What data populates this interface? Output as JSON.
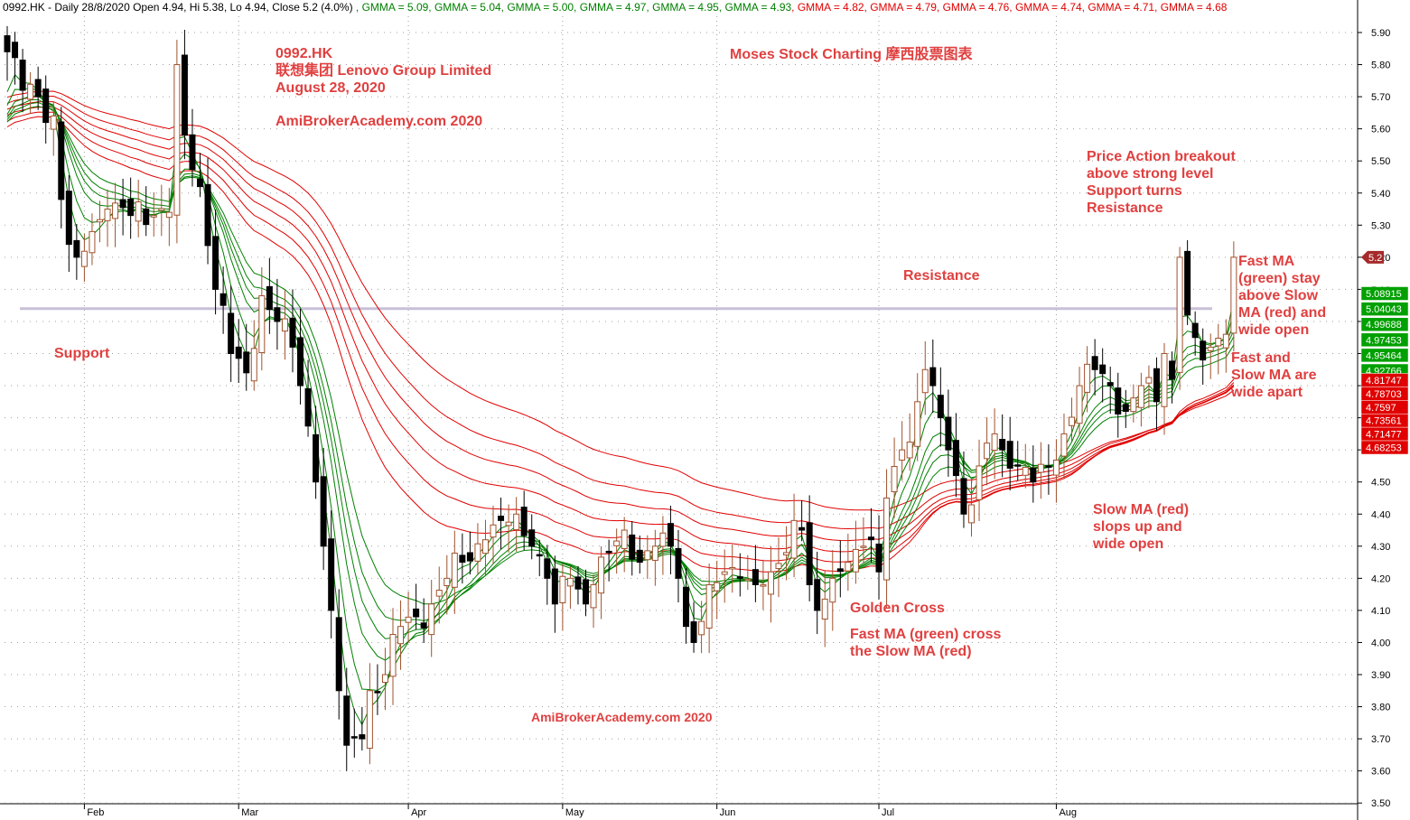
{
  "header": {
    "ticker_info": "0992.HK - Daily 28/8/2020 Open 4.94, Hi 5.38, Lo 4.94, Close 5.2 (4.0%)",
    "gmma": [
      {
        "text": "GMMA = 5.09",
        "color": "#008000"
      },
      {
        "text": "GMMA = 5.04",
        "color": "#008000"
      },
      {
        "text": "GMMA = 5.00",
        "color": "#008000"
      },
      {
        "text": "GMMA = 4.97",
        "color": "#008000"
      },
      {
        "text": "GMMA = 4.95",
        "color": "#008000"
      },
      {
        "text": "GMMA = 4.93",
        "color": "#008000"
      },
      {
        "text": "GMMA = 4.82",
        "color": "#e00000"
      },
      {
        "text": "GMMA = 4.79",
        "color": "#e00000"
      },
      {
        "text": "GMMA = 4.76",
        "color": "#e00000"
      },
      {
        "text": "GMMA = 4.74",
        "color": "#e00000"
      },
      {
        "text": "GMMA = 4.71",
        "color": "#e00000"
      },
      {
        "text": "GMMA = 4.68",
        "color": "#e00000"
      }
    ]
  },
  "annotations": {
    "ticker": "0992.HK",
    "company": "联想集团 Lenovo Group Limited",
    "date": "August 28, 2020",
    "site": "AmiBrokerAcademy.com  2020",
    "brand": "Moses Stock Charting 摩西股票图表",
    "support": "Support",
    "resistance": "Resistance",
    "breakout": [
      "Price Action breakout",
      "above strong level",
      "Support turns",
      "Resistance"
    ],
    "fast_ma": [
      "Fast MA",
      "(green) stay",
      "above Slow",
      "MA (red) and",
      "wide open"
    ],
    "apart": [
      "Fast and",
      "Slow MA are",
      "wide apart"
    ],
    "slow_ma": [
      "Slow MA (red)",
      "slops up and",
      "wide open"
    ],
    "golden_cross": "Golden Cross",
    "cross_desc": [
      "Fast MA (green) cross",
      "the Slow MA (red)"
    ],
    "watermark": "AmiBrokerAcademy.com  2020"
  },
  "colors": {
    "annotation": "#e04040",
    "up_candle": "#a0522d",
    "down_candle": "#000000",
    "fast_ma": "#008000",
    "slow_ma": "#e00000",
    "support_line": "#c8c0d8",
    "grid": "#a0a0a0",
    "price_tag": "#a52a2a"
  },
  "chart_data": {
    "type": "candlestick",
    "ylim": [
      3.5,
      5.95
    ],
    "y_ticks": [
      5.9,
      5.8,
      5.7,
      5.6,
      5.5,
      5.4,
      5.3,
      5.2,
      5.1,
      5.0,
      4.9,
      4.8,
      4.7,
      4.6,
      4.5,
      4.4,
      4.3,
      4.2,
      4.1,
      4.0,
      3.9,
      3.8,
      3.7,
      3.6,
      3.5
    ],
    "y_tick_labels": [
      "5.90",
      "5.80",
      "5.70",
      "5.60",
      "5.50",
      "5.40",
      "5.30",
      "5.20",
      "5.10",
      "5.00",
      "4.90",
      "4.80",
      "4.70",
      "4.60",
      "4.50",
      "4.40",
      "4.30",
      "4.20",
      "4.10",
      "4.00",
      "3.90",
      "3.80",
      "3.70",
      "3.60",
      "3.50"
    ],
    "x_months": [
      {
        "label": "Feb",
        "bar": 10
      },
      {
        "label": "Mar",
        "bar": 30
      },
      {
        "label": "Apr",
        "bar": 52
      },
      {
        "label": "May",
        "bar": 72
      },
      {
        "label": "Jun",
        "bar": 92
      },
      {
        "label": "Jul",
        "bar": 113
      },
      {
        "label": "Aug",
        "bar": 136
      }
    ],
    "support_level": 5.04,
    "last_close": {
      "label": "5.2",
      "value": 5.2
    },
    "ma_tags": {
      "fast": [
        {
          "label": "5.08915",
          "value": 5.089
        },
        {
          "label": "5.04043",
          "value": 5.04
        },
        {
          "label": "4.99688",
          "value": 4.997
        },
        {
          "label": "4.97453",
          "value": 4.975
        },
        {
          "label": "4.95464",
          "value": 4.955
        },
        {
          "label": "4.92766",
          "value": 4.928
        }
      ],
      "slow": [
        {
          "label": "4.81747",
          "value": 4.817
        },
        {
          "label": "4.78703",
          "value": 4.787
        },
        {
          "label": "4.7597",
          "value": 4.76
        },
        {
          "label": "4.73561",
          "value": 4.736
        },
        {
          "label": "4.71477",
          "value": 4.715
        },
        {
          "label": "4.68253",
          "value": 4.683
        }
      ]
    },
    "close_anchors": [
      [
        0,
        5.84
      ],
      [
        2,
        5.72
      ],
      [
        4,
        5.7
      ],
      [
        6,
        5.64
      ],
      [
        7,
        5.38
      ],
      [
        8,
        5.24
      ],
      [
        9,
        5.2
      ],
      [
        11,
        5.28
      ],
      [
        13,
        5.35
      ],
      [
        16,
        5.33
      ],
      [
        19,
        5.33
      ],
      [
        21,
        5.34
      ],
      [
        22,
        5.8
      ],
      [
        23,
        5.58
      ],
      [
        25,
        5.42
      ],
      [
        27,
        5.1
      ],
      [
        28,
        5.05
      ],
      [
        29,
        4.9
      ],
      [
        31,
        4.84
      ],
      [
        33,
        5.08
      ],
      [
        35,
        5.0
      ],
      [
        37,
        4.92
      ],
      [
        38,
        4.8
      ],
      [
        40,
        4.5
      ],
      [
        41,
        4.3
      ],
      [
        42,
        4.1
      ],
      [
        43,
        3.85
      ],
      [
        44,
        3.68
      ],
      [
        46,
        3.7
      ],
      [
        47,
        3.85
      ],
      [
        49,
        3.9
      ],
      [
        51,
        4.05
      ],
      [
        53,
        4.08
      ],
      [
        55,
        4.12
      ],
      [
        57,
        4.2
      ],
      [
        59,
        4.25
      ],
      [
        62,
        4.32
      ],
      [
        64,
        4.38
      ],
      [
        66,
        4.4
      ],
      [
        68,
        4.3
      ],
      [
        70,
        4.2
      ],
      [
        71,
        4.12
      ],
      [
        73,
        4.2
      ],
      [
        75,
        4.12
      ],
      [
        76,
        4.18
      ],
      [
        78,
        4.28
      ],
      [
        80,
        4.35
      ],
      [
        82,
        4.25
      ],
      [
        84,
        4.3
      ],
      [
        86,
        4.3
      ],
      [
        87,
        4.2
      ],
      [
        88,
        4.05
      ],
      [
        89,
        4.0
      ],
      [
        91,
        4.18
      ],
      [
        93,
        4.22
      ],
      [
        95,
        4.2
      ],
      [
        97,
        4.18
      ],
      [
        99,
        4.22
      ],
      [
        101,
        4.28
      ],
      [
        102,
        4.38
      ],
      [
        103,
        4.35
      ],
      [
        104,
        4.18
      ],
      [
        105,
        4.1
      ],
      [
        107,
        4.2
      ],
      [
        109,
        4.25
      ],
      [
        111,
        4.3
      ],
      [
        112,
        4.32
      ],
      [
        113,
        4.22
      ],
      [
        114,
        4.45
      ],
      [
        116,
        4.6
      ],
      [
        118,
        4.75
      ],
      [
        119,
        4.85
      ],
      [
        120,
        4.8
      ],
      [
        121,
        4.7
      ],
      [
        122,
        4.6
      ],
      [
        123,
        4.52
      ],
      [
        124,
        4.4
      ],
      [
        126,
        4.55
      ],
      [
        128,
        4.65
      ],
      [
        129,
        4.6
      ],
      [
        131,
        4.55
      ],
      [
        133,
        4.5
      ],
      [
        135,
        4.55
      ],
      [
        137,
        4.65
      ],
      [
        139,
        4.8
      ],
      [
        141,
        4.85
      ],
      [
        143,
        4.8
      ],
      [
        145,
        4.72
      ],
      [
        147,
        4.8
      ],
      [
        149,
        4.75
      ],
      [
        150,
        4.9
      ],
      [
        151,
        4.82
      ],
      [
        152,
        5.2
      ],
      [
        153,
        5.02
      ],
      [
        154,
        4.95
      ],
      [
        155,
        4.88
      ],
      [
        156,
        4.92
      ],
      [
        158,
        4.96
      ],
      [
        159,
        5.2
      ]
    ]
  }
}
